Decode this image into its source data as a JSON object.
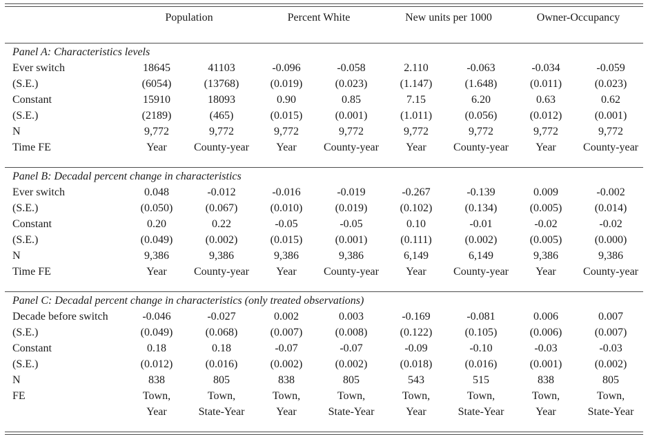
{
  "table": {
    "column_groups": [
      "Population",
      "Percent White",
      "New units per 1000",
      "Owner-Occupancy"
    ],
    "panels": [
      {
        "title": "Panel A: Characteristics levels",
        "rows": [
          {
            "label": "Ever switch",
            "values": [
              "18645",
              "41103",
              "-0.096",
              "-0.058",
              "2.110",
              "-0.063",
              "-0.034",
              "-0.059"
            ]
          },
          {
            "label": "(S.E.)",
            "values": [
              "(6054)",
              "(13768)",
              "(0.019)",
              "(0.023)",
              "(1.147)",
              "(1.648)",
              "(0.011)",
              "(0.023)"
            ]
          },
          {
            "label": "Constant",
            "values": [
              "15910",
              "18093",
              "0.90",
              "0.85",
              "7.15",
              "6.20",
              "0.63",
              "0.62"
            ]
          },
          {
            "label": "(S.E.)",
            "values": [
              "(2189)",
              "(465)",
              "(0.015)",
              "(0.001)",
              "(1.011)",
              "(0.056)",
              "(0.012)",
              "(0.001)"
            ]
          },
          {
            "label": "N",
            "values": [
              "9,772",
              "9,772",
              "9,772",
              "9,772",
              "9,772",
              "9,772",
              "9,772",
              "9,772"
            ]
          },
          {
            "label": "Time FE",
            "values": [
              "Year",
              "County-year",
              "Year",
              "County-year",
              "Year",
              "County-year",
              "Year",
              "County-year"
            ]
          }
        ]
      },
      {
        "title": "Panel B: Decadal percent change in characteristics",
        "rows": [
          {
            "label": "Ever switch",
            "values": [
              "0.048",
              "-0.012",
              "-0.016",
              "-0.019",
              "-0.267",
              "-0.139",
              "0.009",
              "-0.002"
            ]
          },
          {
            "label": "(S.E.)",
            "values": [
              "(0.050)",
              "(0.067)",
              "(0.010)",
              "(0.019)",
              "(0.102)",
              "(0.134)",
              "(0.005)",
              "(0.014)"
            ]
          },
          {
            "label": "Constant",
            "values": [
              "0.20",
              "0.22",
              "-0.05",
              "-0.05",
              "0.10",
              "-0.01",
              "-0.02",
              "-0.02"
            ]
          },
          {
            "label": "(S.E.)",
            "values": [
              "(0.049)",
              "(0.002)",
              "(0.015)",
              "(0.001)",
              "(0.111)",
              "(0.002)",
              "(0.005)",
              "(0.000)"
            ]
          },
          {
            "label": "N",
            "values": [
              "9,386",
              "9,386",
              "9,386",
              "9,386",
              "6,149",
              "6,149",
              "9,386",
              "9,386"
            ]
          },
          {
            "label": "Time FE",
            "values": [
              "Year",
              "County-year",
              "Year",
              "County-year",
              "Year",
              "County-year",
              "Year",
              "County-year"
            ]
          }
        ]
      },
      {
        "title": "Panel C: Decadal percent change in characteristics (only treated observations)",
        "rows": [
          {
            "label": "Decade before switch",
            "values": [
              "-0.046",
              "-0.027",
              "0.002",
              "0.003",
              "-0.169",
              "-0.081",
              "0.006",
              "0.007"
            ]
          },
          {
            "label": "(S.E.)",
            "values": [
              "(0.049)",
              "(0.068)",
              "(0.007)",
              "(0.008)",
              "(0.122)",
              "(0.105)",
              "(0.006)",
              "(0.007)"
            ]
          },
          {
            "label": "Constant",
            "values": [
              "0.18",
              "0.18",
              "-0.07",
              "-0.07",
              "-0.09",
              "-0.10",
              "-0.03",
              "-0.03"
            ]
          },
          {
            "label": "(S.E.)",
            "values": [
              "(0.012)",
              "(0.016)",
              "(0.002)",
              "(0.002)",
              "(0.018)",
              "(0.016)",
              "(0.001)",
              "(0.002)"
            ]
          },
          {
            "label": "N",
            "values": [
              "838",
              "805",
              "838",
              "805",
              "543",
              "515",
              "838",
              "805"
            ]
          },
          {
            "label": "FE",
            "values": [
              "Town,\nYear",
              "Town,\nState-Year",
              "Town,\nYear",
              "Town,\nState-Year",
              "Town,\nYear",
              "Town,\nState-Year",
              "Town,\nYear",
              "Town,\nState-Year"
            ]
          }
        ]
      }
    ]
  }
}
